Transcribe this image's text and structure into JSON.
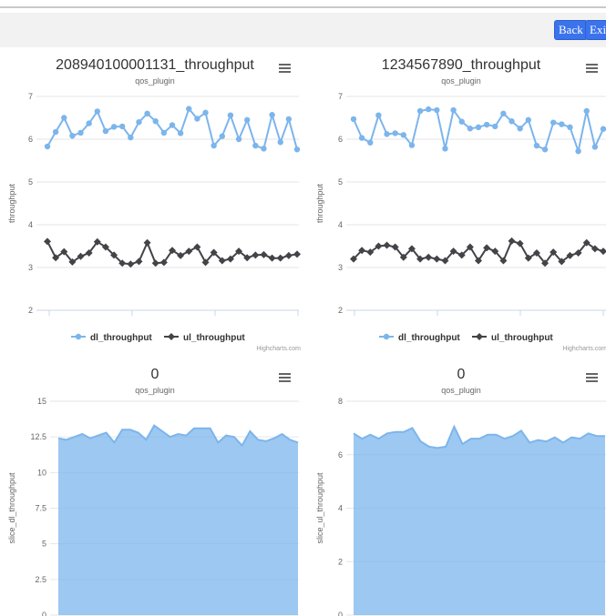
{
  "toolbar": {
    "back_label": "Back",
    "exit_label": "Exit"
  },
  "colors": {
    "dl": "#7cb5ec",
    "ul": "#434348",
    "area": "#7cb5ec"
  },
  "credit": "Highcharts.com",
  "chart_data": [
    {
      "type": "line",
      "title": "208940100001131_throughput",
      "subtitle": "qos_plugin",
      "ylabel": "throughput",
      "ylim": [
        2,
        7
      ],
      "yticks": [
        2,
        3,
        4,
        5,
        6,
        7
      ],
      "legend_position": "bottom-center",
      "grid": true,
      "series": [
        {
          "name": "dl_throughput",
          "marker": "circle",
          "values": [
            5.83,
            6.17,
            6.5,
            6.08,
            6.15,
            6.37,
            6.65,
            6.19,
            6.29,
            6.3,
            6.04,
            6.4,
            6.6,
            6.42,
            6.15,
            6.33,
            6.14,
            6.71,
            6.48,
            6.62,
            5.85,
            6.07,
            6.56,
            6.0,
            6.45,
            5.85,
            5.78,
            6.57,
            5.93,
            6.47,
            5.76
          ]
        },
        {
          "name": "ul_throughput",
          "marker": "diamond",
          "values": [
            3.61,
            3.23,
            3.37,
            3.13,
            3.26,
            3.34,
            3.6,
            3.48,
            3.29,
            3.1,
            3.08,
            3.14,
            3.58,
            3.1,
            3.12,
            3.4,
            3.28,
            3.38,
            3.48,
            3.12,
            3.35,
            3.16,
            3.2,
            3.38,
            3.23,
            3.29,
            3.3,
            3.22,
            3.22,
            3.28,
            3.31
          ]
        }
      ]
    },
    {
      "type": "line",
      "title": "1234567890_throughput",
      "subtitle": "qos_plugin",
      "ylabel": "throughput",
      "ylim": [
        2,
        7
      ],
      "yticks": [
        2,
        3,
        4,
        5,
        6,
        7
      ],
      "legend_position": "bottom-center",
      "grid": true,
      "series": [
        {
          "name": "dl_throughput",
          "marker": "circle",
          "values": [
            6.47,
            6.03,
            5.92,
            6.56,
            6.12,
            6.14,
            6.1,
            5.86,
            6.66,
            6.7,
            6.68,
            5.78,
            6.68,
            6.41,
            6.25,
            6.28,
            6.34,
            6.3,
            6.6,
            6.42,
            6.25,
            6.45,
            5.85,
            5.76,
            6.39,
            6.35,
            6.28,
            5.72,
            6.66,
            5.82,
            6.24
          ]
        },
        {
          "name": "ul_throughput",
          "marker": "diamond",
          "values": [
            3.2,
            3.4,
            3.36,
            3.5,
            3.52,
            3.48,
            3.24,
            3.44,
            3.2,
            3.24,
            3.2,
            3.16,
            3.38,
            3.29,
            3.48,
            3.16,
            3.46,
            3.38,
            3.16,
            3.62,
            3.56,
            3.22,
            3.34,
            3.1,
            3.36,
            3.14,
            3.28,
            3.34,
            3.58,
            3.44,
            3.38
          ]
        }
      ]
    },
    {
      "type": "area",
      "title": "0",
      "subtitle": "qos_plugin",
      "ylabel": "slice_dl_throughput",
      "ylim": [
        0,
        15
      ],
      "yticks": [
        0,
        2.5,
        5,
        7.5,
        10,
        12.5,
        15
      ],
      "grid": true,
      "series": [
        {
          "name": "",
          "values": [
            12.4,
            12.3,
            12.5,
            12.7,
            12.4,
            12.6,
            12.8,
            12.1,
            13.0,
            13.0,
            12.8,
            12.3,
            13.3,
            12.9,
            12.5,
            12.7,
            12.6,
            13.1,
            13.1,
            13.1,
            12.1,
            12.6,
            12.5,
            11.9,
            12.9,
            12.3,
            12.2,
            12.4,
            12.7,
            12.3,
            12.1
          ]
        }
      ]
    },
    {
      "type": "area",
      "title": "0",
      "subtitle": "qos_plugin",
      "ylabel": "slice_ul_throughput",
      "ylim": [
        0,
        8
      ],
      "yticks": [
        0,
        2,
        4,
        6,
        8
      ],
      "grid": true,
      "series": [
        {
          "name": "",
          "values": [
            6.8,
            6.6,
            6.75,
            6.6,
            6.8,
            6.85,
            6.85,
            7.0,
            6.5,
            6.3,
            6.25,
            6.3,
            7.05,
            6.4,
            6.6,
            6.6,
            6.75,
            6.75,
            6.6,
            6.7,
            6.9,
            6.45,
            6.55,
            6.5,
            6.65,
            6.45,
            6.65,
            6.6,
            6.8,
            6.7,
            6.7
          ]
        }
      ]
    }
  ]
}
